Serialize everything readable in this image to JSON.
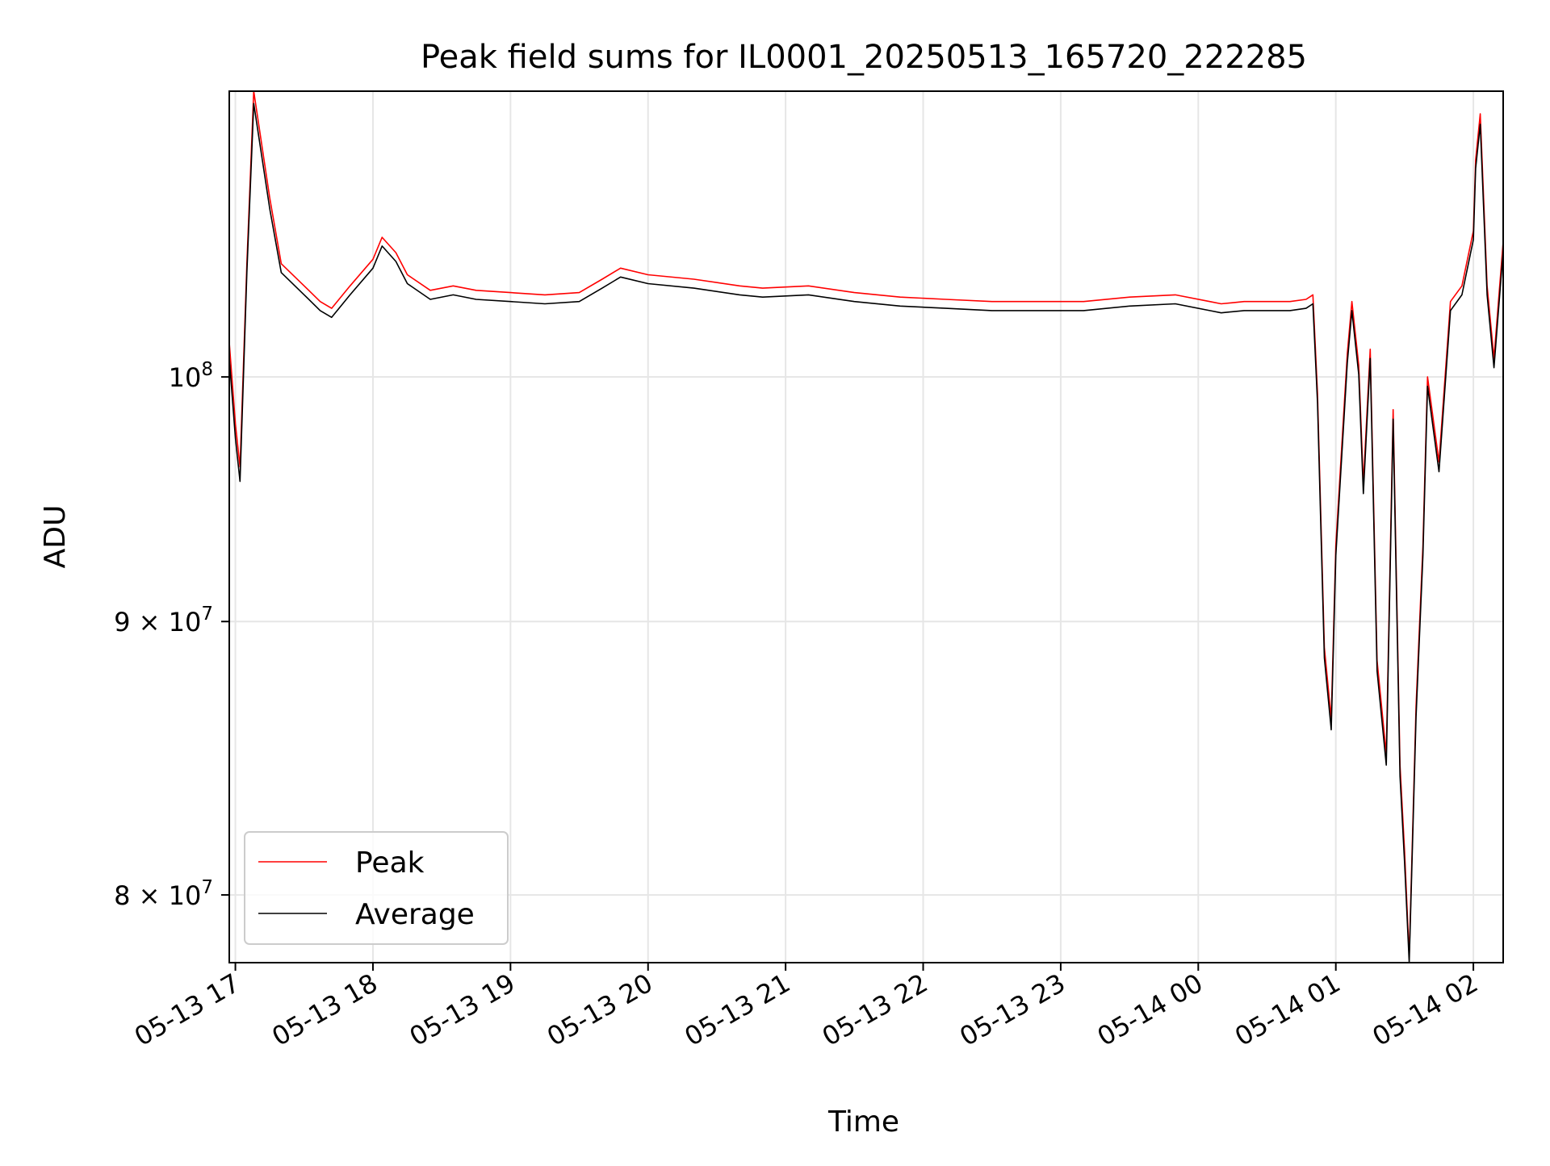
{
  "chart_data": {
    "type": "line",
    "title": "Peak field sums for IL0001_20250513_165720_222285",
    "xlabel": "Time",
    "ylabel": "ADU",
    "x_type": "time",
    "xlim": [
      "2025-05-13T16:57:20",
      "2025-05-14T02:13:00"
    ],
    "ylim": [
      77700000,
      113100000
    ],
    "yscale": "log",
    "grid": true,
    "legend_position": "lower-left",
    "x_ticks": [
      {
        "value": "2025-05-13T17:00:00",
        "label": "05-13 17"
      },
      {
        "value": "2025-05-13T18:00:00",
        "label": "05-13 18"
      },
      {
        "value": "2025-05-13T19:00:00",
        "label": "05-13 19"
      },
      {
        "value": "2025-05-13T20:00:00",
        "label": "05-13 20"
      },
      {
        "value": "2025-05-13T21:00:00",
        "label": "05-13 21"
      },
      {
        "value": "2025-05-13T22:00:00",
        "label": "05-13 22"
      },
      {
        "value": "2025-05-13T23:00:00",
        "label": "05-13 23"
      },
      {
        "value": "2025-05-14T00:00:00",
        "label": "05-14 00"
      },
      {
        "value": "2025-05-14T01:00:00",
        "label": "05-14 01"
      },
      {
        "value": "2025-05-14T02:00:00",
        "label": "05-14 02"
      }
    ],
    "y_ticks": [
      {
        "value": 80000000,
        "mantissa": "8",
        "exponent": "7"
      },
      {
        "value": 90000000,
        "mantissa": "9",
        "exponent": "7"
      },
      {
        "value": 100000000,
        "mantissa": "",
        "exponent": "8"
      }
    ],
    "x": [
      "2025-05-13T16:57:20",
      "2025-05-13T17:00:00",
      "2025-05-13T17:02:00",
      "2025-05-13T17:05:00",
      "2025-05-13T17:08:00",
      "2025-05-13T17:15:00",
      "2025-05-13T17:20:00",
      "2025-05-13T17:30:00",
      "2025-05-13T17:37:00",
      "2025-05-13T17:42:00",
      "2025-05-13T17:50:00",
      "2025-05-13T18:00:00",
      "2025-05-13T18:04:00",
      "2025-05-13T18:10:00",
      "2025-05-13T18:15:00",
      "2025-05-13T18:25:00",
      "2025-05-13T18:35:00",
      "2025-05-13T18:45:00",
      "2025-05-13T19:00:00",
      "2025-05-13T19:15:00",
      "2025-05-13T19:30:00",
      "2025-05-13T19:40:00",
      "2025-05-13T19:48:00",
      "2025-05-13T20:00:00",
      "2025-05-13T20:20:00",
      "2025-05-13T20:40:00",
      "2025-05-13T20:50:00",
      "2025-05-13T21:10:00",
      "2025-05-13T21:30:00",
      "2025-05-13T21:50:00",
      "2025-05-13T22:10:00",
      "2025-05-13T22:30:00",
      "2025-05-13T22:50:00",
      "2025-05-13T23:10:00",
      "2025-05-13T23:30:00",
      "2025-05-13T23:50:00",
      "2025-05-14T00:05:00",
      "2025-05-14T00:10:00",
      "2025-05-14T00:20:00",
      "2025-05-14T00:40:00",
      "2025-05-14T00:47:00",
      "2025-05-14T00:50:00",
      "2025-05-14T00:52:00",
      "2025-05-14T00:55:00",
      "2025-05-14T00:58:00",
      "2025-05-14T01:00:00",
      "2025-05-14T01:05:00",
      "2025-05-14T01:07:00",
      "2025-05-14T01:10:00",
      "2025-05-14T01:12:00",
      "2025-05-14T01:15:00",
      "2025-05-14T01:18:00",
      "2025-05-14T01:22:00",
      "2025-05-14T01:25:00",
      "2025-05-14T01:28:00",
      "2025-05-14T01:30:00",
      "2025-05-14T01:32:00",
      "2025-05-14T01:35:00",
      "2025-05-14T01:38:00",
      "2025-05-14T01:40:00",
      "2025-05-14T01:45:00",
      "2025-05-14T01:50:00",
      "2025-05-14T01:55:00",
      "2025-05-14T02:00:00",
      "2025-05-14T02:01:00",
      "2025-05-14T02:03:00",
      "2025-05-14T02:06:00",
      "2025-05-14T02:09:00",
      "2025-05-14T02:13:00"
    ],
    "series": [
      {
        "name": "Peak",
        "color": "#ff0000",
        "values": [
          101500000,
          98000000,
          96200000,
          105000000,
          113100000,
          108000000,
          105000000,
          104000000,
          103300000,
          103000000,
          104000000,
          105200000,
          106200000,
          105500000,
          104500000,
          103800000,
          104000000,
          103800000,
          103700000,
          103600000,
          103700000,
          104300000,
          104800000,
          104500000,
          104300000,
          104000000,
          103900000,
          104000000,
          103700000,
          103500000,
          103400000,
          103300000,
          103300000,
          103300000,
          103500000,
          103600000,
          103300000,
          103200000,
          103300000,
          103300000,
          103400000,
          103600000,
          99300000,
          89000000,
          86300000,
          93000000,
          101000000,
          103300000,
          100500000,
          95500000,
          101200000,
          88500000,
          85000000,
          98600000,
          84600000,
          81500000,
          77900000,
          86800000,
          93000000,
          100000000,
          96400000,
          103300000,
          104000000,
          106500000,
          109800000,
          112000000,
          104000000,
          100800000,
          106000000
        ]
      },
      {
        "name": "Average",
        "color": "#000000",
        "values": [
          100800000,
          97400000,
          95600000,
          104600000,
          112500000,
          107500000,
          104600000,
          103600000,
          102900000,
          102600000,
          103600000,
          104800000,
          105800000,
          105100000,
          104100000,
          103400000,
          103600000,
          103400000,
          103300000,
          103200000,
          103300000,
          103900000,
          104400000,
          104100000,
          103900000,
          103600000,
          103500000,
          103600000,
          103300000,
          103100000,
          103000000,
          102900000,
          102900000,
          102900000,
          103100000,
          103200000,
          102900000,
          102800000,
          102900000,
          102900000,
          103000000,
          103200000,
          98900000,
          88600000,
          85900000,
          92600000,
          100600000,
          102900000,
          100100000,
          95100000,
          100800000,
          88100000,
          84600000,
          98200000,
          84200000,
          81100000,
          77700000,
          86400000,
          92600000,
          99600000,
          96000000,
          102900000,
          103600000,
          106100000,
          109400000,
          111500000,
          103600000,
          100400000,
          105600000
        ]
      }
    ]
  }
}
